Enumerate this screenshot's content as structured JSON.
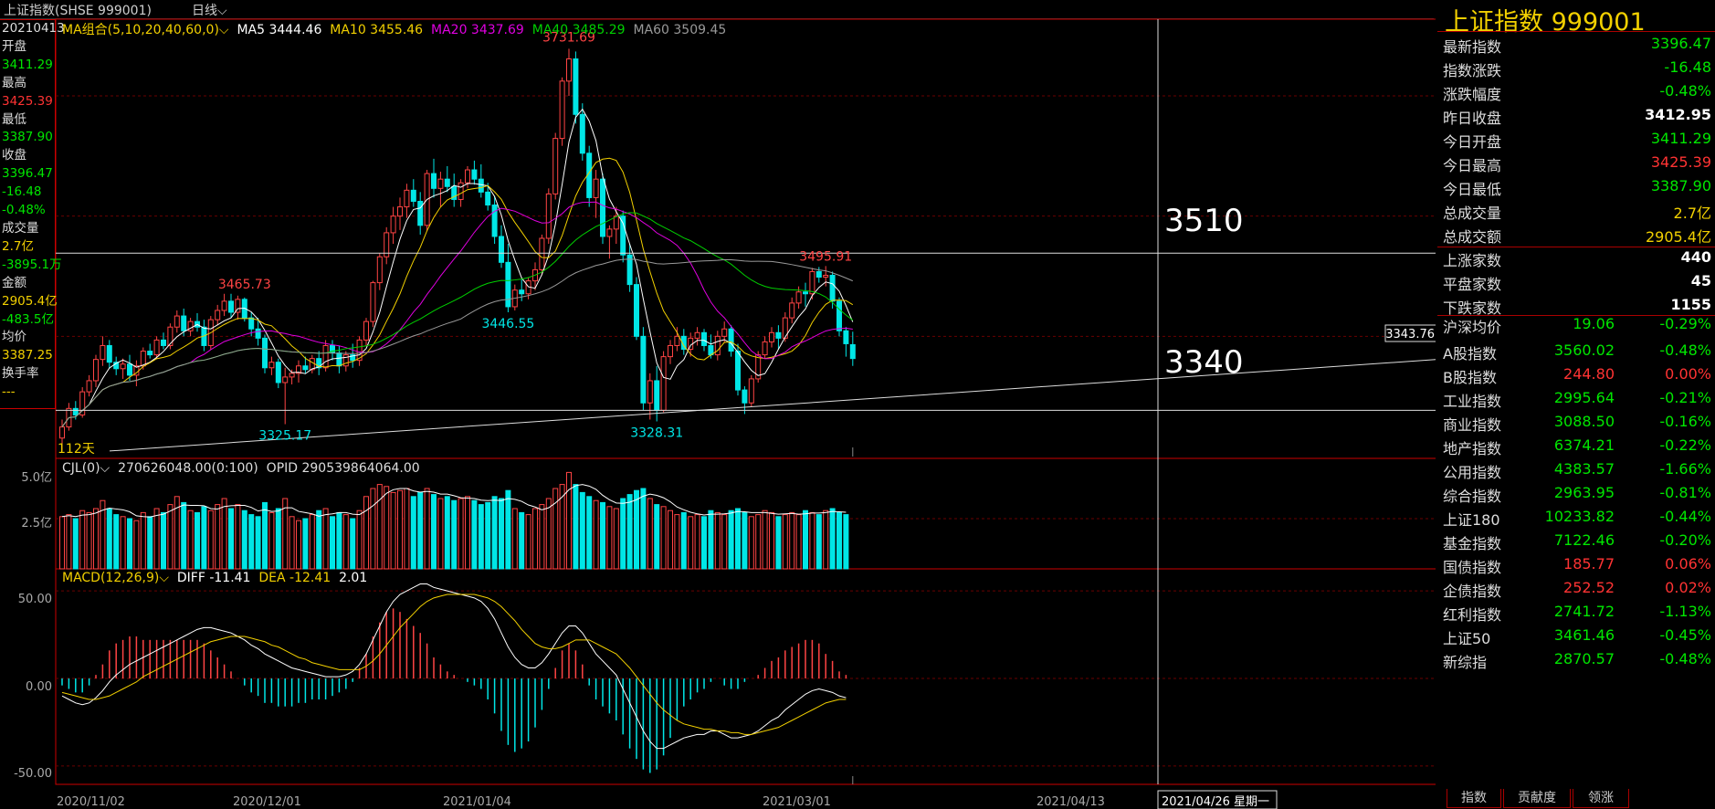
{
  "window": {
    "title": "上证指数(SHSE 999001)",
    "period": "日线"
  },
  "infobox": [
    {
      "k": "20210413",
      "c": "#ddd"
    },
    {
      "k": "开盘",
      "c": "#ddd"
    },
    {
      "k": "3411.29",
      "c": "#00e600"
    },
    {
      "k": "最高",
      "c": "#ddd"
    },
    {
      "k": "3425.39",
      "c": "#ff3333"
    },
    {
      "k": "最低",
      "c": "#ddd"
    },
    {
      "k": "3387.90",
      "c": "#00e600"
    },
    {
      "k": "收盘",
      "c": "#ddd"
    },
    {
      "k": "3396.47",
      "c": "#00e600"
    },
    {
      "k": "-16.48",
      "c": "#00e600"
    },
    {
      "k": "-0.48%",
      "c": "#00e600"
    },
    {
      "k": "成交量",
      "c": "#ddd"
    },
    {
      "k": "2.7亿",
      "c": "#f2d000"
    },
    {
      "k": "-3895.1万",
      "c": "#00e600"
    },
    {
      "k": "金额",
      "c": "#ddd"
    },
    {
      "k": "2905.4亿",
      "c": "#f2d000"
    },
    {
      "k": "-483.5亿",
      "c": "#00e600"
    },
    {
      "k": "均价",
      "c": "#ddd"
    },
    {
      "k": "3387.25",
      "c": "#f2d000"
    },
    {
      "k": "换手率",
      "c": "#ddd"
    },
    {
      "k": "---",
      "c": "#f2d000"
    }
  ],
  "ma_legend": {
    "combo": "MA组合(5,10,20,40,60,0)",
    "ma5": "MA5 3444.46",
    "ma10": "MA10 3455.46",
    "ma20": "MA20 3437.69",
    "ma40": "MA40 3485.29",
    "ma60": "MA60 3509.45"
  },
  "colors": {
    "ma5": "#ffffff",
    "ma10": "#f2d000",
    "ma20": "#e000e0",
    "ma40": "#00d000",
    "ma60": "#999999",
    "up": "#ff4444",
    "down": "#00e6e6"
  },
  "annotations": {
    "peak": "3731.69",
    "high1": "3465.73",
    "low1": "3325.17",
    "low2": "3446.55",
    "low3": "3328.31",
    "high2": "3495.91",
    "days": "112天",
    "price_tag": "3343.76",
    "level_high": "3510",
    "level_low": "3340"
  },
  "volume": {
    "legend1": "CJL(0)",
    "legend2": "270626048.00(0:100)",
    "legend3": "OPID 290539864064.00",
    "tick_top": "5.0亿",
    "tick_mid": "2.5亿"
  },
  "macd": {
    "legend": "MACD(12,26,9)",
    "diff": "DIFF -11.41",
    "dea": "DEA -12.41",
    "val": "2.01",
    "tick_50": "50.00",
    "tick_0": "0.00",
    "tick_m50": "-50.00"
  },
  "dates": [
    "2020/11/02",
    "2020/12/01",
    "2021/01/04",
    "2021/03/01",
    "2021/04/13"
  ],
  "cursor_date": "2021/04/26 星期一",
  "right": {
    "header": "上证指数  999001",
    "quotes": [
      {
        "k": "最新指数",
        "v": "3396.47",
        "c": "#00e600"
      },
      {
        "k": "指数涨跌",
        "v": "-16.48",
        "c": "#00e600"
      },
      {
        "k": "涨跌幅度",
        "v": "-0.48%",
        "c": "#00e600"
      },
      {
        "k": "昨日收盘",
        "v": "3412.95",
        "c": "#ffffff"
      },
      {
        "k": "今日开盘",
        "v": "3411.29",
        "c": "#00e600"
      },
      {
        "k": "今日最高",
        "v": "3425.39",
        "c": "#ff3333"
      },
      {
        "k": "今日最低",
        "v": "3387.90",
        "c": "#00e600"
      },
      {
        "k": "总成交量",
        "v": "2.7亿",
        "c": "#f2d000"
      },
      {
        "k": "总成交额",
        "v": "2905.4亿",
        "c": "#f2d000"
      },
      {
        "k": "上涨家数",
        "v": "440",
        "c": "#ffffff"
      },
      {
        "k": "平盘家数",
        "v": "45",
        "c": "#ffffff"
      },
      {
        "k": "下跌家数",
        "v": "1155",
        "c": "#ffffff"
      }
    ],
    "avg": {
      "k": "沪深均价",
      "v1": "19.06",
      "v2": "-0.29%"
    },
    "indices": [
      {
        "k": "A股指数",
        "v1": "3560.02",
        "v2": "-0.48%",
        "c": "#00e600"
      },
      {
        "k": "B股指数",
        "v1": "244.80",
        "v2": "0.00%",
        "c": "#ff3333"
      },
      {
        "k": "工业指数",
        "v1": "2995.64",
        "v2": "-0.21%",
        "c": "#00e600"
      },
      {
        "k": "商业指数",
        "v1": "3088.50",
        "v2": "-0.16%",
        "c": "#00e600"
      },
      {
        "k": "地产指数",
        "v1": "6374.21",
        "v2": "-0.22%",
        "c": "#00e600"
      },
      {
        "k": "公用指数",
        "v1": "4383.57",
        "v2": "-1.66%",
        "c": "#00e600"
      },
      {
        "k": "综合指数",
        "v1": "2963.95",
        "v2": "-0.81%",
        "c": "#00e600"
      },
      {
        "k": "上证180",
        "v1": "10233.82",
        "v2": "-0.44%",
        "c": "#00e600"
      },
      {
        "k": "基金指数",
        "v1": "7122.46",
        "v2": "-0.20%",
        "c": "#00e600"
      },
      {
        "k": "国债指数",
        "v1": "185.77",
        "v2": "0.06%",
        "c": "#ff3333"
      },
      {
        "k": "企债指数",
        "v1": "252.52",
        "v2": "0.02%",
        "c": "#ff3333"
      },
      {
        "k": "红利指数",
        "v1": "2741.72",
        "v2": "-1.13%",
        "c": "#00e600"
      },
      {
        "k": "上证50",
        "v1": "3461.46",
        "v2": "-0.45%",
        "c": "#00e600"
      },
      {
        "k": "新综指",
        "v1": "2870.57",
        "v2": "-0.48%",
        "c": "#00e600"
      }
    ],
    "tabs": [
      "指数",
      "贡献度",
      "领涨"
    ]
  },
  "chart_data": {
    "type": "candlestick",
    "price_range": [
      3290,
      3760
    ],
    "volume_range": [
      0,
      5.0
    ],
    "macd_range": [
      -60,
      60
    ],
    "candles": [
      [
        3310,
        3330,
        3296,
        3322
      ],
      [
        3322,
        3348,
        3318,
        3342
      ],
      [
        3342,
        3350,
        3330,
        3335
      ],
      [
        3335,
        3365,
        3332,
        3360
      ],
      [
        3360,
        3378,
        3355,
        3372
      ],
      [
        3372,
        3400,
        3365,
        3395
      ],
      [
        3395,
        3420,
        3388,
        3410
      ],
      [
        3410,
        3416,
        3385,
        3392
      ],
      [
        3392,
        3398,
        3378,
        3385
      ],
      [
        3385,
        3396,
        3374,
        3390
      ],
      [
        3390,
        3400,
        3372,
        3378
      ],
      [
        3378,
        3394,
        3366,
        3388
      ],
      [
        3388,
        3408,
        3384,
        3404
      ],
      [
        3404,
        3412,
        3396,
        3400
      ],
      [
        3400,
        3420,
        3396,
        3416
      ],
      [
        3416,
        3424,
        3406,
        3410
      ],
      [
        3410,
        3434,
        3406,
        3430
      ],
      [
        3430,
        3448,
        3424,
        3442
      ],
      [
        3442,
        3450,
        3420,
        3426
      ],
      [
        3426,
        3440,
        3420,
        3436
      ],
      [
        3436,
        3445,
        3425,
        3430
      ],
      [
        3430,
        3438,
        3404,
        3410
      ],
      [
        3410,
        3442,
        3406,
        3438
      ],
      [
        3438,
        3454,
        3432,
        3448
      ],
      [
        3448,
        3466,
        3442,
        3458
      ],
      [
        3458,
        3466,
        3440,
        3446
      ],
      [
        3446,
        3464,
        3438,
        3460
      ],
      [
        3460,
        3462,
        3436,
        3440
      ],
      [
        3440,
        3446,
        3420,
        3428
      ],
      [
        3428,
        3440,
        3410,
        3418
      ],
      [
        3418,
        3422,
        3380,
        3386
      ],
      [
        3386,
        3398,
        3378,
        3392
      ],
      [
        3392,
        3396,
        3364,
        3370
      ],
      [
        3370,
        3386,
        3325,
        3376
      ],
      [
        3376,
        3384,
        3368,
        3380
      ],
      [
        3380,
        3394,
        3370,
        3388
      ],
      [
        3388,
        3398,
        3380,
        3384
      ],
      [
        3384,
        3400,
        3380,
        3396
      ],
      [
        3396,
        3404,
        3378,
        3386
      ],
      [
        3386,
        3416,
        3382,
        3410
      ],
      [
        3410,
        3416,
        3394,
        3402
      ],
      [
        3402,
        3410,
        3380,
        3388
      ],
      [
        3388,
        3404,
        3382,
        3400
      ],
      [
        3400,
        3412,
        3386,
        3394
      ],
      [
        3394,
        3420,
        3388,
        3416
      ],
      [
        3416,
        3440,
        3410,
        3436
      ],
      [
        3436,
        3480,
        3430,
        3478
      ],
      [
        3478,
        3510,
        3470,
        3506
      ],
      [
        3506,
        3538,
        3498,
        3532
      ],
      [
        3532,
        3560,
        3520,
        3550
      ],
      [
        3550,
        3570,
        3535,
        3560
      ],
      [
        3560,
        3585,
        3548,
        3578
      ],
      [
        3578,
        3590,
        3560,
        3566
      ],
      [
        3566,
        3576,
        3530,
        3540
      ],
      [
        3540,
        3600,
        3534,
        3596
      ],
      [
        3596,
        3612,
        3570,
        3580
      ],
      [
        3580,
        3598,
        3560,
        3590
      ],
      [
        3590,
        3604,
        3576,
        3582
      ],
      [
        3582,
        3596,
        3560,
        3568
      ],
      [
        3568,
        3590,
        3560,
        3586
      ],
      [
        3586,
        3604,
        3580,
        3600
      ],
      [
        3600,
        3610,
        3584,
        3590
      ],
      [
        3590,
        3606,
        3570,
        3576
      ],
      [
        3576,
        3586,
        3556,
        3562
      ],
      [
        3562,
        3572,
        3520,
        3528
      ],
      [
        3528,
        3540,
        3494,
        3500
      ],
      [
        3500,
        3520,
        3446,
        3452
      ],
      [
        3452,
        3476,
        3448,
        3470
      ],
      [
        3470,
        3482,
        3458,
        3466
      ],
      [
        3466,
        3484,
        3460,
        3480
      ],
      [
        3480,
        3500,
        3470,
        3492
      ],
      [
        3492,
        3530,
        3486,
        3526
      ],
      [
        3526,
        3580,
        3520,
        3574
      ],
      [
        3574,
        3640,
        3568,
        3634
      ],
      [
        3634,
        3700,
        3626,
        3696
      ],
      [
        3696,
        3731,
        3680,
        3720
      ],
      [
        3720,
        3728,
        3650,
        3660
      ],
      [
        3660,
        3672,
        3610,
        3618
      ],
      [
        3618,
        3626,
        3560,
        3570
      ],
      [
        3570,
        3600,
        3548,
        3590
      ],
      [
        3590,
        3596,
        3520,
        3528
      ],
      [
        3528,
        3540,
        3504,
        3536
      ],
      [
        3536,
        3560,
        3520,
        3550
      ],
      [
        3550,
        3556,
        3500,
        3508
      ],
      [
        3508,
        3520,
        3468,
        3476
      ],
      [
        3476,
        3484,
        3416,
        3420
      ],
      [
        3420,
        3430,
        3340,
        3348
      ],
      [
        3348,
        3380,
        3330,
        3372
      ],
      [
        3372,
        3388,
        3328,
        3340
      ],
      [
        3340,
        3404,
        3338,
        3398
      ],
      [
        3398,
        3416,
        3390,
        3410
      ],
      [
        3410,
        3430,
        3404,
        3420
      ],
      [
        3420,
        3428,
        3400,
        3406
      ],
      [
        3406,
        3424,
        3398,
        3418
      ],
      [
        3418,
        3430,
        3410,
        3424
      ],
      [
        3424,
        3428,
        3404,
        3410
      ],
      [
        3410,
        3422,
        3396,
        3400
      ],
      [
        3400,
        3426,
        3394,
        3420
      ],
      [
        3420,
        3436,
        3414,
        3428
      ],
      [
        3428,
        3432,
        3398,
        3404
      ],
      [
        3404,
        3412,
        3356,
        3362
      ],
      [
        3362,
        3366,
        3336,
        3348
      ],
      [
        3348,
        3378,
        3344,
        3374
      ],
      [
        3374,
        3404,
        3370,
        3400
      ],
      [
        3400,
        3420,
        3396,
        3414
      ],
      [
        3414,
        3430,
        3408,
        3424
      ],
      [
        3424,
        3432,
        3406,
        3418
      ],
      [
        3418,
        3446,
        3414,
        3440
      ],
      [
        3440,
        3462,
        3434,
        3456
      ],
      [
        3456,
        3474,
        3450,
        3468
      ],
      [
        3468,
        3478,
        3452,
        3466
      ],
      [
        3466,
        3494,
        3460,
        3490
      ],
      [
        3490,
        3495,
        3478,
        3484
      ],
      [
        3484,
        3496,
        3474,
        3486
      ],
      [
        3486,
        3490,
        3450,
        3458
      ],
      [
        3458,
        3462,
        3420,
        3426
      ],
      [
        3426,
        3430,
        3398,
        3412
      ],
      [
        3411,
        3425,
        3388,
        3396
      ]
    ],
    "volume": [
      2.6,
      2.7,
      2.5,
      2.9,
      2.8,
      3.0,
      3.4,
      3.0,
      2.7,
      2.6,
      2.5,
      2.4,
      2.8,
      2.6,
      3.0,
      2.8,
      3.2,
      3.6,
      3.3,
      2.9,
      2.8,
      3.1,
      2.9,
      3.2,
      3.5,
      3.0,
      3.2,
      2.9,
      2.7,
      2.6,
      3.3,
      2.8,
      3.0,
      3.5,
      2.6,
      2.4,
      2.5,
      2.7,
      2.9,
      3.0,
      2.6,
      2.8,
      2.7,
      2.5,
      2.9,
      3.6,
      4.0,
      4.2,
      4.1,
      3.8,
      3.9,
      4.0,
      3.6,
      3.8,
      4.0,
      3.7,
      3.5,
      3.6,
      3.4,
      3.5,
      3.6,
      3.4,
      3.2,
      3.3,
      3.6,
      3.5,
      3.9,
      3.0,
      2.8,
      2.7,
      3.0,
      3.2,
      3.5,
      4.0,
      4.2,
      4.8,
      4.2,
      3.8,
      3.6,
      3.4,
      3.3,
      3.1,
      3.0,
      3.5,
      3.7,
      3.9,
      4.0,
      3.5,
      3.2,
      3.1,
      2.9,
      2.7,
      2.8,
      2.6,
      2.7,
      2.6,
      2.9,
      2.8,
      2.7,
      2.9,
      3.0,
      2.8,
      2.6,
      2.7,
      2.9,
      2.8,
      2.6,
      2.7,
      2.8,
      2.7,
      2.9,
      2.8,
      2.7,
      2.9,
      3.0,
      2.8,
      2.7
    ],
    "macd_diff": [
      -10,
      -12,
      -14,
      -15,
      -14,
      -11,
      -7,
      -2,
      2,
      5,
      8,
      10,
      12,
      14,
      16,
      18,
      20,
      22,
      24,
      26,
      28,
      29,
      29,
      28,
      27,
      26,
      24,
      22,
      19,
      17,
      14,
      12,
      10,
      8,
      6,
      5,
      4,
      3,
      2,
      1,
      1,
      1,
      2,
      4,
      8,
      14,
      22,
      30,
      38,
      44,
      48,
      50,
      52,
      54,
      54,
      52,
      51,
      50,
      49,
      48,
      47,
      46,
      44,
      40,
      34,
      26,
      18,
      12,
      8,
      6,
      6,
      9,
      14,
      20,
      26,
      30,
      30,
      26,
      20,
      14,
      10,
      6,
      2,
      -6,
      -14,
      -22,
      -30,
      -36,
      -40,
      -40,
      -38,
      -36,
      -34,
      -33,
      -32,
      -32,
      -30,
      -30,
      -32,
      -34,
      -34,
      -33,
      -32,
      -30,
      -27,
      -24,
      -22,
      -18,
      -15,
      -12,
      -9,
      -7,
      -6,
      -7,
      -8,
      -10,
      -11
    ],
    "macd_dea": [
      -8,
      -9,
      -10,
      -11,
      -12,
      -12,
      -11,
      -10,
      -8,
      -6,
      -4,
      -2,
      1,
      3,
      5,
      7,
      9,
      11,
      13,
      15,
      17,
      19,
      21,
      22,
      23,
      24,
      24,
      24,
      23,
      22,
      21,
      19,
      18,
      16,
      14,
      12,
      11,
      9,
      8,
      7,
      6,
      5,
      5,
      5,
      5,
      7,
      10,
      14,
      19,
      24,
      29,
      33,
      37,
      41,
      44,
      46,
      47,
      48,
      48,
      48,
      48,
      48,
      47,
      46,
      44,
      41,
      37,
      33,
      28,
      24,
      20,
      18,
      17,
      17,
      18,
      20,
      22,
      22,
      22,
      20,
      18,
      16,
      14,
      10,
      6,
      1,
      -4,
      -9,
      -14,
      -18,
      -21,
      -24,
      -26,
      -27,
      -28,
      -29,
      -29,
      -30,
      -30,
      -31,
      -31,
      -32,
      -32,
      -31,
      -30,
      -29,
      -28,
      -26,
      -24,
      -22,
      -20,
      -18,
      -16,
      -14,
      -13,
      -12,
      -12
    ]
  }
}
